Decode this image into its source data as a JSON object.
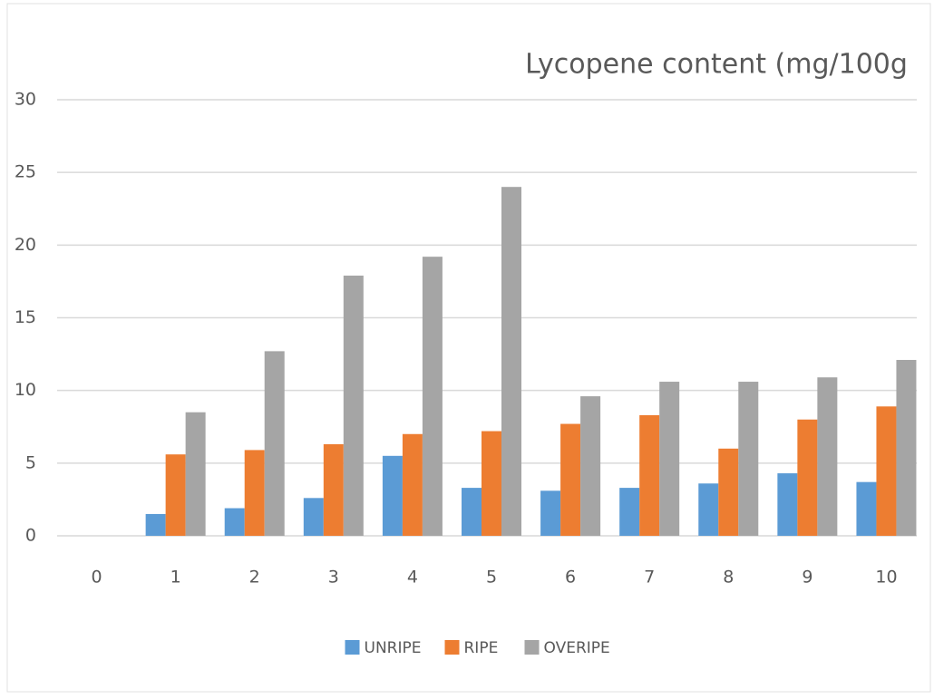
{
  "chart_data": {
    "type": "bar",
    "title": "Lycopene content (mg/100g",
    "categories": [
      "0",
      "1",
      "2",
      "3",
      "4",
      "5",
      "6",
      "7",
      "8",
      "9",
      "10"
    ],
    "series": [
      {
        "name": "UNRIPE",
        "color": "#5b9bd5",
        "values": [
          null,
          1.5,
          1.9,
          2.6,
          5.5,
          3.3,
          3.1,
          3.3,
          3.6,
          4.3,
          3.7
        ]
      },
      {
        "name": "RIPE",
        "color": "#ed7d31",
        "values": [
          null,
          5.6,
          5.9,
          6.3,
          7.0,
          7.2,
          7.7,
          8.3,
          6.0,
          8.0,
          8.9
        ]
      },
      {
        "name": "OVERIPE",
        "color": "#a5a5a5",
        "values": [
          null,
          8.5,
          12.7,
          17.9,
          19.2,
          24.0,
          9.6,
          10.6,
          10.6,
          10.9,
          12.1
        ]
      }
    ],
    "ylim": [
      0,
      30
    ],
    "yticks": [
      0,
      5,
      10,
      15,
      20,
      25,
      30
    ],
    "grid": true,
    "legend": "bottom"
  }
}
